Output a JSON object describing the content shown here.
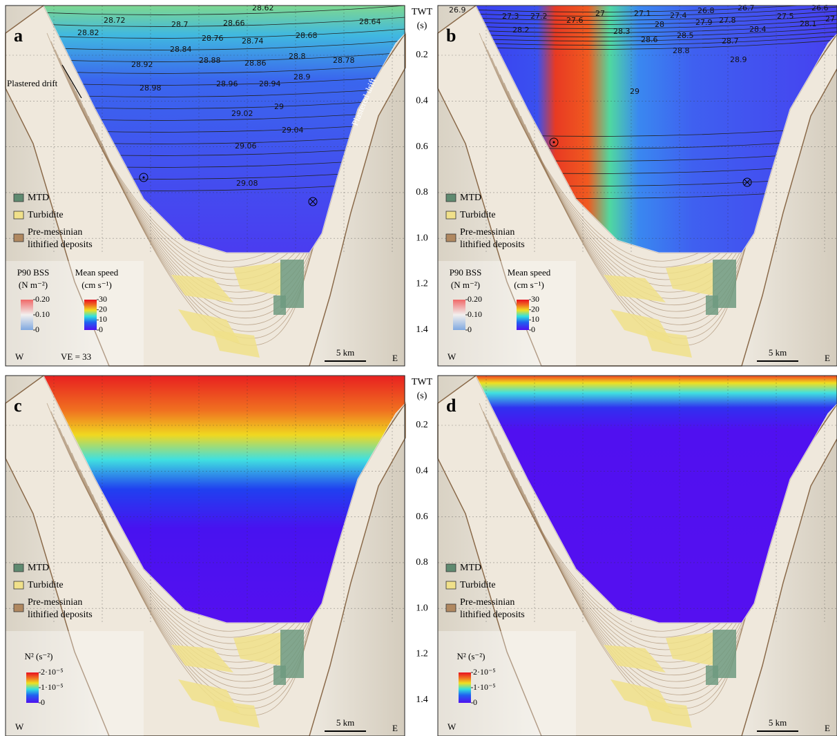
{
  "axis": {
    "title": "TWT",
    "unit": "(s)",
    "ticks": [
      "0.2",
      "0.4",
      "0.6",
      "0.8",
      "1.0",
      "1.2",
      "1.4"
    ]
  },
  "panels": [
    {
      "label": "a",
      "contour_labels": [
        28.62,
        28.72,
        28.7,
        28.66,
        28.64,
        28.82,
        28.76,
        28.74,
        28.68,
        28.84,
        28.8,
        28.78,
        28.88,
        28.86,
        28.92,
        28.9,
        28.98,
        28.96,
        28.94,
        29,
        29.02,
        29.04,
        29.06,
        29.08
      ],
      "legend": [
        [
          "MTD"
        ],
        [
          "Turbidite"
        ],
        [
          "Pre-messinian",
          "lithified deposits"
        ]
      ],
      "colorbars": [
        {
          "title": "P90 BSS",
          "unit": "(N m⁻²)",
          "ticks": [
            "0.20",
            "0.10",
            "0"
          ]
        },
        {
          "title": "Mean speed",
          "unit": "(cm s⁻¹)",
          "ticks": [
            "30",
            "20",
            "10",
            "0"
          ]
        }
      ],
      "west": "W",
      "east": "E",
      "scale": "5 km",
      "annotations": [
        "VE = 33",
        "Plastered drift"
      ]
    },
    {
      "label": "b",
      "contour_labels": [
        26.9,
        27.3,
        27.2,
        27.6,
        27,
        27.1,
        27.4,
        26.8,
        26.7,
        26.6,
        27.5,
        28,
        27.9,
        27.8,
        28.1,
        27,
        28.2,
        28.3,
        28.5,
        28.4,
        28.6,
        28.7,
        28.8,
        28.9,
        29
      ],
      "legend": [
        [
          "MTD"
        ],
        [
          "Turbidite"
        ],
        [
          "Pre-messinian",
          "lithified deposits"
        ]
      ],
      "colorbars": [
        {
          "title": "P90 BSS",
          "unit": "(N m⁻²)",
          "ticks": [
            "0.20",
            "0.10",
            "0"
          ]
        },
        {
          "title": "Mean speed",
          "unit": "(cm s⁻¹)",
          "ticks": [
            "30",
            "20",
            "10",
            "0"
          ]
        }
      ],
      "west": "W",
      "east": "E",
      "scale": "5 km"
    },
    {
      "label": "c",
      "legend": [
        [
          "MTD"
        ],
        [
          "Turbidite"
        ],
        [
          "Pre-messinian",
          "lithified deposits"
        ]
      ],
      "colorbars": [
        {
          "title": "N² (s⁻²)",
          "ticks": [
            "2·10⁻⁵",
            "1·10⁻⁵",
            "0"
          ]
        }
      ],
      "west": "W",
      "east": "E",
      "scale": "5 km"
    },
    {
      "label": "d",
      "legend": [
        [
          "MTD"
        ],
        [
          "Turbidite"
        ],
        [
          "Pre-messinian",
          "lithified deposits"
        ]
      ],
      "colorbars": [
        {
          "title": "N² (s⁻²)",
          "ticks": [
            "2·10⁻⁵",
            "1·10⁻⁵",
            "0"
          ]
        }
      ],
      "west": "W",
      "east": "E",
      "scale": "5 km"
    }
  ]
}
